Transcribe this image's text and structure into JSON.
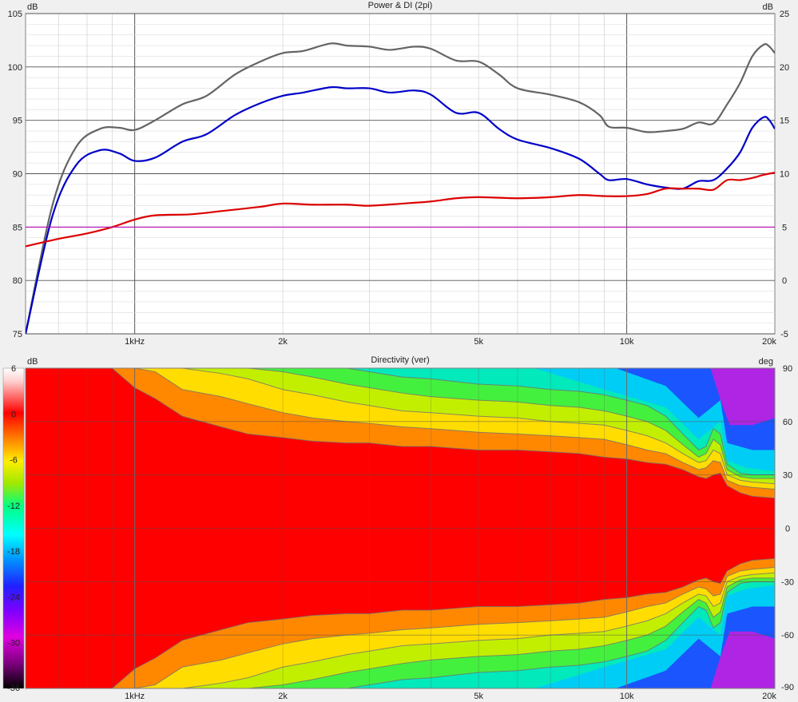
{
  "chart_data": [
    {
      "type": "line",
      "title": "Power & DI (2pi)",
      "ylabel_left": "dB",
      "ylabel_right": "dB",
      "xscale": "log",
      "xlim": [
        600,
        20000
      ],
      "ylim_left": [
        75,
        105
      ],
      "ylim_right": [
        -5,
        25
      ],
      "x_ticks": [
        {
          "value": 1000,
          "label": "1kHz"
        },
        {
          "value": 2000,
          "label": "2k"
        },
        {
          "value": 5000,
          "label": "5k"
        },
        {
          "value": 10000,
          "label": "10k"
        },
        {
          "value": 20000,
          "label": "20k"
        }
      ],
      "y_ticks_left": [
        "75",
        "80",
        "85",
        "90",
        "95",
        "100",
        "105"
      ],
      "y_ticks_right": [
        "-5",
        "0",
        "5",
        "10",
        "15",
        "20",
        "25"
      ],
      "grid": true,
      "series": [
        {
          "color": "#646464",
          "axis": "left",
          "x": [
            600,
            680,
            760,
            850,
            930,
            1000,
            1100,
            1250,
            1400,
            1600,
            1800,
            2000,
            2200,
            2500,
            2700,
            3000,
            3300,
            3700,
            4000,
            4500,
            5000,
            5500,
            6000,
            7000,
            8000,
            8800,
            9200,
            10000,
            11000,
            12000,
            13000,
            14000,
            15000,
            16000,
            17000,
            18000,
            19000,
            19500,
            20000
          ],
          "values": [
            75,
            87,
            92.5,
            94.2,
            94.3,
            94.1,
            95,
            96.5,
            97.3,
            99.3,
            100.5,
            101.3,
            101.5,
            102.2,
            102,
            101.9,
            101.6,
            101.9,
            101.7,
            100.6,
            100.5,
            99.3,
            98,
            97.4,
            96.7,
            95.5,
            94.4,
            94.3,
            93.9,
            94,
            94.2,
            94.8,
            94.7,
            96.5,
            98.5,
            101,
            102.1,
            101.9,
            101.3
          ]
        },
        {
          "color": "#0000c8",
          "axis": "left",
          "x": [
            600,
            680,
            760,
            850,
            930,
            1000,
            1100,
            1250,
            1400,
            1600,
            1800,
            2000,
            2200,
            2500,
            2700,
            3000,
            3300,
            3700,
            4000,
            4500,
            5000,
            5500,
            6000,
            7000,
            8000,
            8800,
            9200,
            10000,
            11000,
            12000,
            13000,
            14000,
            15000,
            16000,
            17000,
            18000,
            19000,
            19500,
            20000
          ],
          "values": [
            75,
            86,
            90.8,
            92.2,
            91.9,
            91.2,
            91.5,
            93,
            93.7,
            95.5,
            96.6,
            97.3,
            97.6,
            98.1,
            98,
            98,
            97.6,
            97.8,
            97.4,
            95.7,
            95.7,
            94.2,
            93.2,
            92.4,
            91.4,
            90,
            89.4,
            89.5,
            89,
            88.7,
            88.6,
            89.3,
            89.4,
            90.5,
            92,
            94.3,
            95.3,
            95,
            94.2
          ]
        },
        {
          "color": "#dc0000",
          "axis": "left",
          "x": [
            600,
            700,
            800,
            900,
            1000,
            1100,
            1300,
            1500,
            1800,
            2000,
            2300,
            2700,
            3000,
            3500,
            4000,
            4500,
            5000,
            6000,
            7000,
            8000,
            9000,
            10000,
            11000,
            12000,
            13000,
            14000,
            15000,
            16000,
            17000,
            18000,
            19000,
            20000
          ],
          "values": [
            83.2,
            83.9,
            84.4,
            85,
            85.7,
            86.1,
            86.2,
            86.5,
            86.9,
            87.2,
            87.1,
            87.1,
            87,
            87.2,
            87.4,
            87.7,
            87.8,
            87.7,
            87.8,
            88,
            87.9,
            87.9,
            88.1,
            88.6,
            88.6,
            88.6,
            88.5,
            89.4,
            89.4,
            89.6,
            89.9,
            90.1
          ]
        },
        {
          "color": "#c000c0",
          "axis": "left",
          "x": [
            600,
            20000
          ],
          "values": [
            85,
            85
          ]
        }
      ]
    },
    {
      "type": "heatmap",
      "title": "Directivity (ver)",
      "ylabel_left": "dB",
      "ylabel_right": "deg",
      "xscale": "log",
      "xlim": [
        600,
        20000
      ],
      "ylim": [
        -90,
        90
      ],
      "x_ticks": [
        {
          "value": 1000,
          "label": "1kHz"
        },
        {
          "value": 2000,
          "label": "2k"
        },
        {
          "value": 5000,
          "label": "5k"
        },
        {
          "value": 10000,
          "label": "10k"
        },
        {
          "value": 20000,
          "label": "20k"
        }
      ],
      "y_ticks_right": [
        "90",
        "60",
        "30",
        "0",
        "-30",
        "-60",
        "-90"
      ],
      "colorbar_ticks": [
        "6",
        "0",
        "-6",
        "-12",
        "-18",
        "-24",
        "-30",
        "-36"
      ],
      "colorbar_range": [
        -36,
        6
      ],
      "contour_levels_db": [
        -3,
        -6,
        -9,
        -12,
        -15
      ],
      "contour_x": [
        600,
        700,
        800,
        900,
        1000,
        1100,
        1250,
        1500,
        1700,
        2000,
        2300,
        2700,
        3000,
        3500,
        4000,
        5000,
        6000,
        7000,
        8000,
        9000,
        10000,
        11000,
        12000,
        13000,
        14000,
        14500,
        15000,
        15500,
        16000,
        17000,
        18000,
        20000
      ],
      "contour_angles_deg": [
        [
          90,
          90,
          90,
          90,
          79,
          73,
          63,
          57,
          53,
          51,
          49,
          48,
          48,
          46,
          46,
          44,
          44,
          43,
          42,
          40,
          39,
          37,
          36,
          33,
          29,
          28,
          30,
          31,
          24,
          20,
          18,
          17
        ],
        [
          90,
          90,
          90,
          90,
          90,
          88,
          78,
          74,
          70,
          65,
          62,
          60,
          59,
          57,
          56,
          54,
          53,
          52,
          51,
          50,
          47,
          44,
          42,
          37,
          33,
          34,
          38,
          37,
          27,
          24,
          23,
          22
        ],
        [
          90,
          90,
          90,
          90,
          90,
          90,
          90,
          87,
          84,
          78,
          75,
          71,
          69,
          66,
          65,
          63,
          62,
          60,
          59,
          58,
          55,
          52,
          48,
          42,
          37,
          38,
          44,
          42,
          30,
          27,
          26,
          25
        ],
        [
          90,
          90,
          90,
          90,
          90,
          90,
          90,
          90,
          90,
          88,
          85,
          81,
          79,
          76,
          74,
          72,
          71,
          69,
          68,
          66,
          63,
          60,
          55,
          47,
          40,
          42,
          50,
          47,
          33,
          29,
          28,
          28
        ],
        [
          90,
          90,
          90,
          90,
          90,
          90,
          90,
          90,
          90,
          90,
          90,
          90,
          88,
          85,
          84,
          81,
          80,
          78,
          77,
          75,
          72,
          69,
          63,
          53,
          44,
          46,
          56,
          53,
          36,
          31,
          30,
          30
        ]
      ]
    }
  ]
}
